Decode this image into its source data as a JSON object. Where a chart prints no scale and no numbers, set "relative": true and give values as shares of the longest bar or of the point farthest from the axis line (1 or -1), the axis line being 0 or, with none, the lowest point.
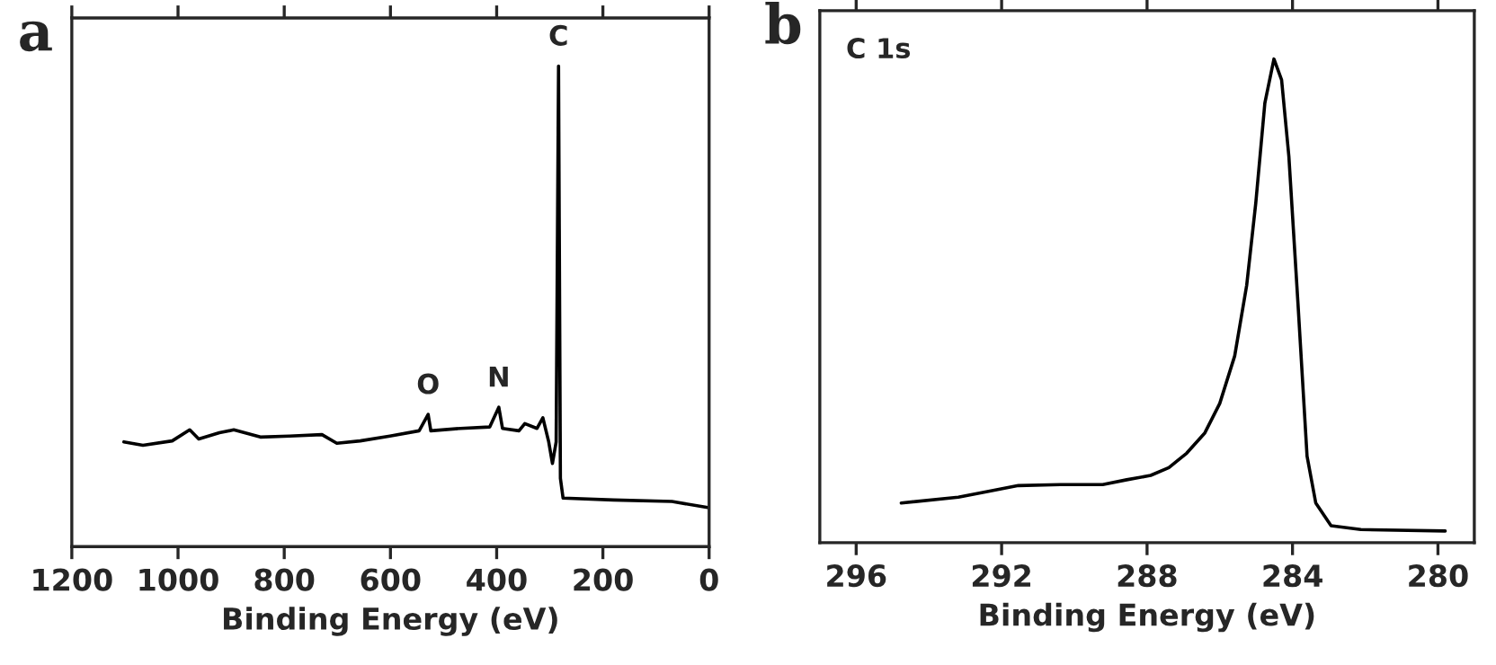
{
  "chart_data": [
    {
      "type": "line",
      "title": "a",
      "xlabel": "Binding Energy (eV)",
      "relative": true,
      "tick_labels": "x",
      "grid": false,
      "marker": "none",
      "line_style": "solid",
      "xlim": [
        1200,
        0
      ],
      "xticks": [
        1200,
        1000,
        800,
        600,
        400,
        200,
        0
      ],
      "annotations": [
        {
          "text": "O",
          "x": 529,
          "y": 0.275
        },
        {
          "text": "N",
          "x": 396,
          "y": 0.29
        },
        {
          "text": "C",
          "x": 283.5,
          "y": 1.0
        }
      ],
      "series": [
        {
          "color": "#000000",
          "x": [
            1102,
            1066,
            1011,
            978,
            961,
            922,
            895,
            845,
            790,
            729,
            701,
            657,
            601,
            546,
            529,
            524,
            468,
            413,
            396,
            389,
            358,
            347,
            324,
            313,
            302,
            295,
            288,
            283.5,
            280,
            275,
            180,
            70,
            0
          ],
          "values": [
            0.218,
            0.211,
            0.22,
            0.243,
            0.224,
            0.237,
            0.243,
            0.228,
            0.23,
            0.233,
            0.215,
            0.22,
            0.23,
            0.241,
            0.275,
            0.241,
            0.246,
            0.249,
            0.29,
            0.246,
            0.241,
            0.256,
            0.246,
            0.268,
            0.218,
            0.173,
            0.218,
            1.0,
            0.142,
            0.101,
            0.097,
            0.094,
            0.081
          ]
        }
      ]
    },
    {
      "type": "line",
      "title": "b",
      "xlabel": "Binding Energy (eV)",
      "relative": true,
      "tick_labels": "x",
      "grid": false,
      "marker": "none",
      "line_style": "solid",
      "xlim": [
        297,
        279
      ],
      "xticks": [
        296,
        292,
        288,
        284,
        280
      ],
      "annotations": [
        "C 1s"
      ],
      "series": [
        {
          "color": "#000000",
          "x": [
            294.76,
            293.19,
            292.36,
            291.54,
            290.38,
            289.22,
            288.56,
            287.9,
            287.4,
            286.91,
            286.41,
            286.0,
            285.59,
            285.26,
            285.01,
            284.76,
            284.51,
            284.3,
            284.1,
            283.85,
            283.6,
            283.36,
            282.94,
            282.12,
            279.8
          ],
          "values": [
            0.082,
            0.094,
            0.106,
            0.118,
            0.12,
            0.12,
            0.13,
            0.139,
            0.155,
            0.185,
            0.227,
            0.288,
            0.386,
            0.532,
            0.702,
            0.909,
            1.0,
            0.957,
            0.799,
            0.495,
            0.179,
            0.082,
            0.035,
            0.027,
            0.024
          ]
        }
      ]
    }
  ]
}
